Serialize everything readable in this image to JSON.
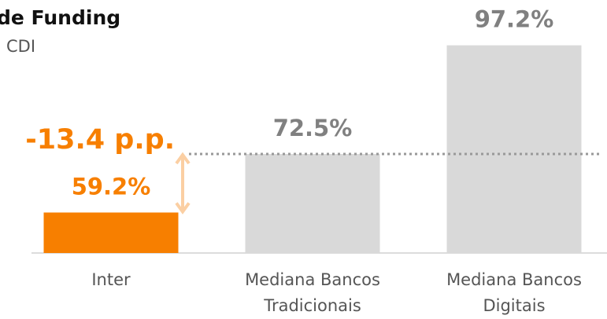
{
  "chart_data": {
    "type": "bar",
    "title": "de Funding",
    "subtitle": "CDI",
    "categories": [
      "Inter",
      "Mediana Bancos Tradicionais",
      "Mediana Bancos Digitais"
    ],
    "values": [
      59.2,
      72.5,
      97.2
    ],
    "value_labels": [
      "59.2%",
      "72.5%",
      "97.2%"
    ],
    "colors": [
      "#f77f00",
      "#d9d9d9",
      "#d9d9d9"
    ],
    "label_colors": [
      "#f77f00",
      "#808080",
      "#808080"
    ],
    "annotation": "-13.4 p.p.",
    "ylim": [
      50,
      100
    ]
  }
}
